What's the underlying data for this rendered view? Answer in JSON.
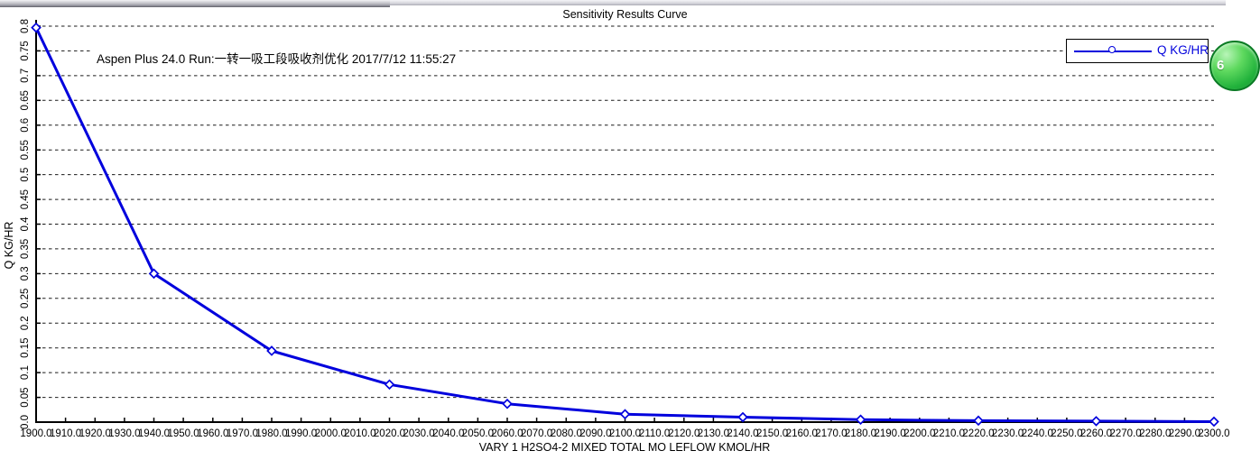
{
  "chart": {
    "title": "Sensitivity Results Curve",
    "annotation": "Aspen Plus 24.0 Run:一转一吸工段吸收剂优化 2017/7/12 11:55:27"
  },
  "legend": {
    "label": "Q KG/HR"
  },
  "overlay_badge": {
    "label": "6"
  },
  "colors": {
    "series": "#0000dd",
    "legend_text": "#0000dd",
    "axis": "#000000",
    "grid": "#1a1a1a",
    "background": "#ffffff",
    "badge_green": "#22b23c"
  },
  "chart_data": {
    "type": "line",
    "title": "Sensitivity Results Curve",
    "annotation": "Aspen Plus 24.0 Run:一转一吸工段吸收剂优化 2017/7/12 11:55:27",
    "xlabel": "VARY   1 H2SO4-2 MIXED TOTAL MO LEFLOW KMOL/HR",
    "ylabel": "Q KG/HR",
    "xlim": [
      1900,
      2300
    ],
    "ylim": [
      0,
      0.8
    ],
    "grid": "horizontal-dashed",
    "legend_position": "top-right",
    "x_ticks": [
      "1900.0",
      "1910.0",
      "1920.0",
      "1930.0",
      "1940.0",
      "1950.0",
      "1960.0",
      "1970.0",
      "1980.0",
      "1990.0",
      "2000.0",
      "2010.0",
      "2020.0",
      "2030.0",
      "2040.0",
      "2050.0",
      "2060.0",
      "2070.0",
      "2080.0",
      "2090.0",
      "2100.0",
      "2110.0",
      "2120.0",
      "2130.0",
      "2140.0",
      "2150.0",
      "2160.0",
      "2170.0",
      "2180.0",
      "2190.0",
      "2200.0",
      "2210.0",
      "2220.0",
      "2230.0",
      "2240.0",
      "2250.0",
      "2260.0",
      "2270.0",
      "2280.0",
      "2290.0",
      "2300.0"
    ],
    "y_ticks": [
      "0.0",
      "0.05",
      "0.1",
      "0.15",
      "0.2",
      "0.25",
      "0.3",
      "0.35",
      "0.4",
      "0.45",
      "0.5",
      "0.55",
      "0.6",
      "0.65",
      "0.7",
      "0.75",
      "0.8"
    ],
    "series": [
      {
        "name": "Q KG/HR",
        "color": "#0000dd",
        "marker": "diamond-open",
        "x": [
          1900,
          1940,
          1980,
          2020,
          2060,
          2100,
          2140,
          2180,
          2220,
          2260,
          2300
        ],
        "y": [
          0.797,
          0.3,
          0.144,
          0.076,
          0.037,
          0.016,
          0.01,
          0.005,
          0.003,
          0.002,
          0.001
        ]
      }
    ]
  }
}
